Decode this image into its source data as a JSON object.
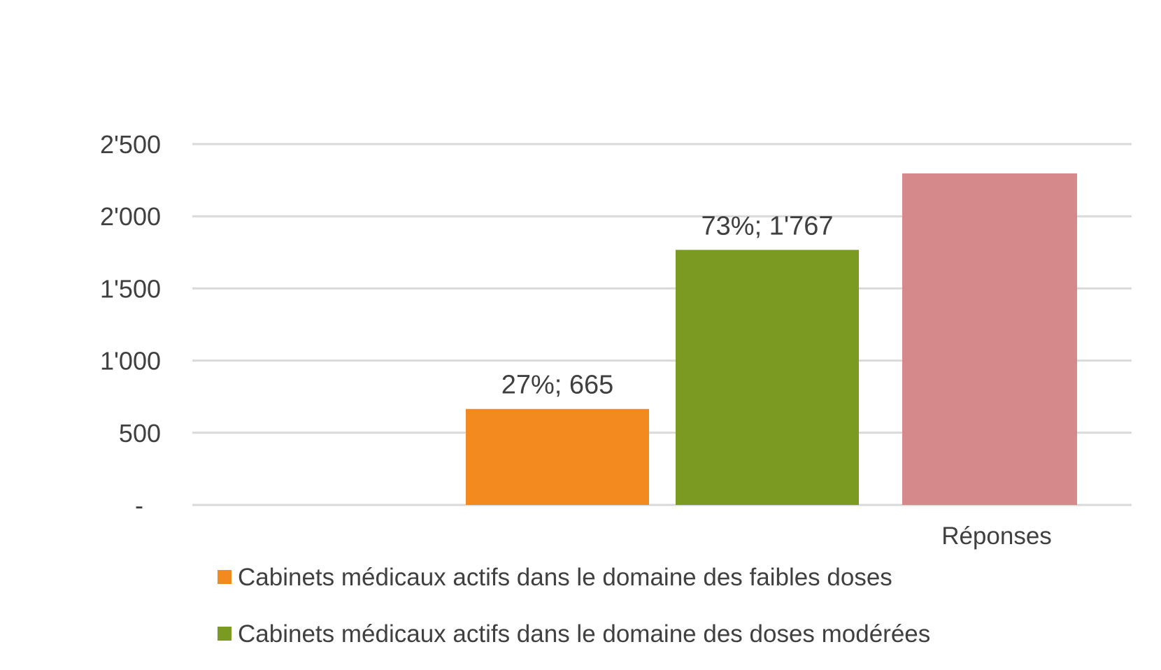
{
  "chart_data": {
    "type": "bar",
    "categories": [
      "Réponses"
    ],
    "ylim": [
      0,
      2500
    ],
    "y_ticks": [
      {
        "value": 0,
        "label": "-"
      },
      {
        "value": 500,
        "label": "500"
      },
      {
        "value": 1000,
        "label": "1'000"
      },
      {
        "value": 1500,
        "label": "1'500"
      },
      {
        "value": 2000,
        "label": "2'000"
      },
      {
        "value": 2500,
        "label": "2'500"
      }
    ],
    "grid": true,
    "legend_position": "bottom",
    "series": [
      {
        "name": "Cabinets médicaux actifs dans le domaine des faibles doses",
        "values": [
          665
        ],
        "data_label": "27%;  665",
        "color": "#F28A20",
        "in_legend": true
      },
      {
        "name": "Cabinets médicaux actifs dans le domaine des doses modérées",
        "values": [
          1767
        ],
        "data_label": "73%;  1'767",
        "color": "#7A9A21",
        "in_legend": true
      },
      {
        "values": [
          2297
        ],
        "data_label": "",
        "color": "#D6898A",
        "in_legend": false
      }
    ]
  }
}
